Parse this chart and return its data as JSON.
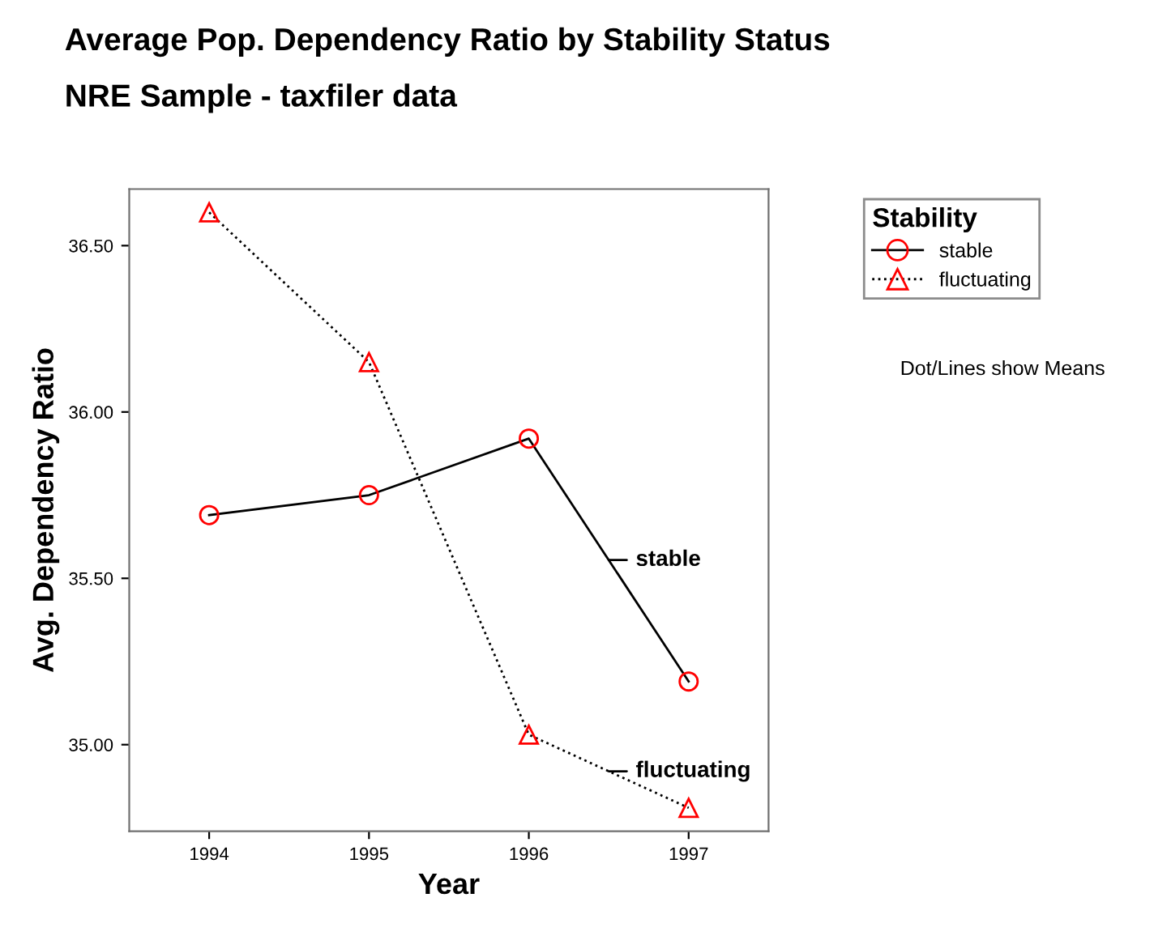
{
  "chart_data": {
    "type": "line",
    "title": "Average Pop. Dependency Ratio by Stability Status",
    "subtitle": "NRE Sample - taxfiler data",
    "xlabel": "Year",
    "ylabel": "Avg. Dependency Ratio",
    "legend_title": "Stability",
    "legend": "top right",
    "x": [
      1994,
      1995,
      1996,
      1997
    ],
    "xlim": [
      1993.5,
      1997.5
    ],
    "xticks": [
      1994,
      1995,
      1996,
      1997
    ],
    "ylim": [
      34.74,
      36.67
    ],
    "yticks": [
      {
        "value": 35.0,
        "label": "35.00"
      },
      {
        "value": 35.5,
        "label": "35.50"
      },
      {
        "value": 36.0,
        "label": "36.00"
      },
      {
        "value": 36.5,
        "label": "36.50"
      }
    ],
    "grid": false,
    "series": [
      {
        "name": "stable",
        "color": "#000000",
        "marker": "circle",
        "line_style": "solid",
        "values": [
          35.69,
          35.75,
          35.92,
          35.19
        ]
      },
      {
        "name": "fluctuating",
        "color": "#000000",
        "marker": "triangle",
        "line_style": "dotted",
        "values": [
          36.6,
          36.15,
          35.03,
          34.81
        ]
      }
    ],
    "annotations": [
      {
        "text": "stable",
        "x": 1996.5,
        "y": 35.555
      },
      {
        "text": "fluctuating",
        "x": 1996.5,
        "y": 34.92
      },
      "Dot/Lines show Means"
    ]
  }
}
